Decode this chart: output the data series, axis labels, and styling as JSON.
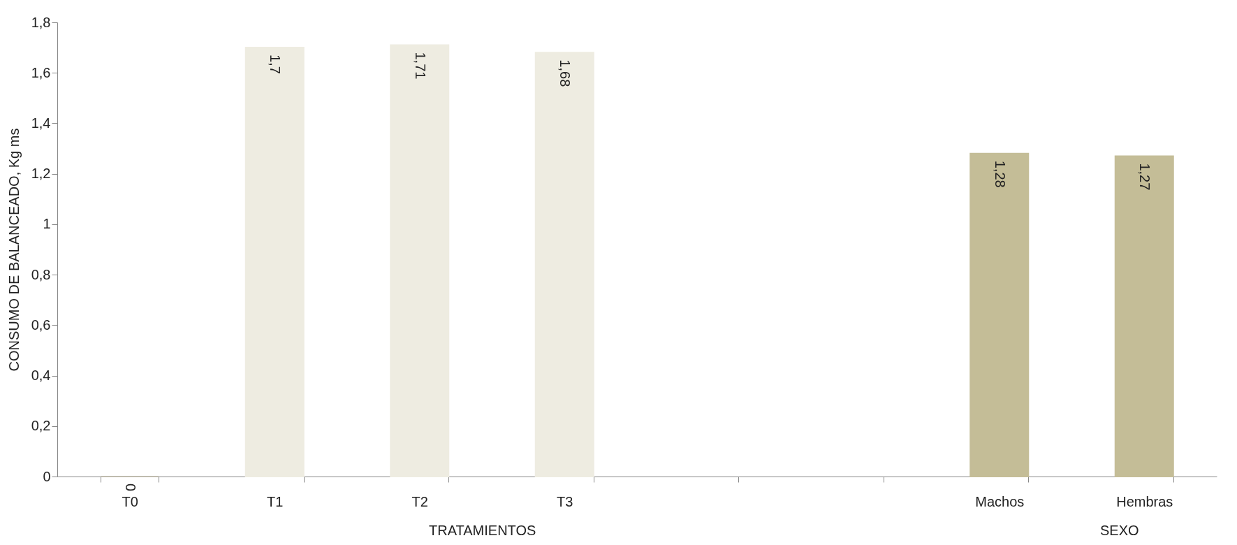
{
  "chart_data": {
    "type": "bar",
    "ylabel": "CONSUMO DE BALANCEADO, Kg ms",
    "categories": [
      "T0",
      "T1",
      "T2",
      "T3",
      null,
      null,
      "Machos",
      "Hembras"
    ],
    "values": [
      0,
      1.7,
      1.71,
      1.68,
      null,
      null,
      1.28,
      1.27
    ],
    "value_labels": [
      "0",
      "1,7",
      "1,71",
      "1,68",
      null,
      null,
      "1,28",
      "1,27"
    ],
    "colors": [
      "#bfbbae",
      "#eeece1",
      "#eeece1",
      "#eeece1",
      null,
      null,
      "#c4bd97",
      "#c4bd97"
    ],
    "ylim": [
      0,
      1.8
    ],
    "yticks": [
      0,
      {
        "value": 0.2,
        "label": "0,2"
      },
      {
        "value": 0.4,
        "label": "0,4"
      },
      {
        "value": 0.6,
        "label": "0,6"
      },
      {
        "value": 0.8,
        "label": "0,8"
      },
      1,
      {
        "value": 1.2,
        "label": "1,2"
      },
      {
        "value": 1.4,
        "label": "1,4"
      },
      {
        "value": 1.6,
        "label": "1,6"
      },
      {
        "value": 1.8,
        "label": "1,8"
      }
    ],
    "annotations": [
      "TRATAMIENTOS",
      "SEXO"
    ],
    "grid": false,
    "legend": false
  }
}
